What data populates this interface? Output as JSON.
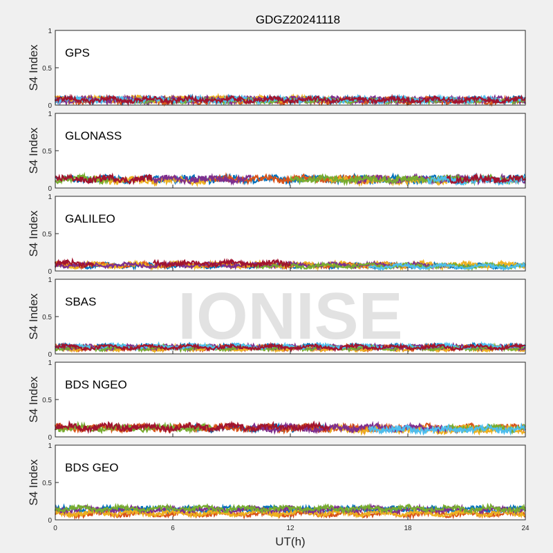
{
  "chart_data": {
    "type": "scatter",
    "title": "GDGZ20241118",
    "xlabel": "UT(h)",
    "ylabel": "S4 Index",
    "xlim": [
      0,
      24
    ],
    "ylim": [
      0,
      1
    ],
    "xticks": [
      "0",
      "6",
      "12",
      "18",
      "24"
    ],
    "yticks": [
      "0",
      "0.5",
      "1"
    ],
    "watermark": "IONISE",
    "colors": [
      "#0072BD",
      "#D95319",
      "#EDB120",
      "#7E2F8E",
      "#77AC30",
      "#4DBEEE",
      "#A2142F"
    ],
    "panels": [
      {
        "label": "GPS",
        "series": [
          {
            "mean": 0.07,
            "noise": 0.03,
            "ranges": [
              [
                0,
                24
              ]
            ]
          },
          {
            "mean": 0.06,
            "noise": 0.03,
            "ranges": [
              [
                0,
                24
              ]
            ]
          },
          {
            "mean": 0.08,
            "noise": 0.03,
            "ranges": [
              [
                0,
                14
              ]
            ]
          },
          {
            "mean": 0.07,
            "noise": 0.03,
            "ranges": [
              [
                0,
                24
              ]
            ]
          },
          {
            "mean": 0.06,
            "noise": 0.02,
            "ranges": [
              [
                4,
                24
              ]
            ]
          },
          {
            "mean": 0.07,
            "noise": 0.03,
            "ranges": [
              [
                0,
                24
              ]
            ]
          },
          {
            "mean": 0.07,
            "noise": 0.03,
            "ranges": [
              [
                0,
                24
              ]
            ]
          }
        ]
      },
      {
        "label": "GLONASS",
        "series": [
          {
            "mean": 0.12,
            "noise": 0.04,
            "ranges": [
              [
                0,
                24
              ]
            ]
          },
          {
            "mean": 0.12,
            "noise": 0.04,
            "ranges": [
              [
                8,
                17
              ]
            ]
          },
          {
            "mean": 0.1,
            "noise": 0.04,
            "ranges": [
              [
                2,
                8
              ],
              [
                14,
                20
              ]
            ]
          },
          {
            "mean": 0.12,
            "noise": 0.04,
            "ranges": [
              [
                5,
                10
              ],
              [
                15,
                24
              ]
            ]
          },
          {
            "mean": 0.12,
            "noise": 0.04,
            "ranges": [
              [
                0,
                3
              ],
              [
                12,
                24
              ]
            ]
          },
          {
            "mean": 0.1,
            "noise": 0.04,
            "ranges": [
              [
                19,
                24
              ]
            ]
          },
          {
            "mean": 0.12,
            "noise": 0.04,
            "ranges": [
              [
                0,
                5
              ],
              [
                20,
                24
              ]
            ]
          }
        ]
      },
      {
        "label": "GALILEO",
        "series": [
          {
            "mean": 0.07,
            "noise": 0.02,
            "ranges": [
              [
                0,
                24
              ]
            ]
          },
          {
            "mean": 0.08,
            "noise": 0.02,
            "ranges": [
              [
                0,
                18
              ]
            ]
          },
          {
            "mean": 0.08,
            "noise": 0.03,
            "ranges": [
              [
                0,
                24
              ]
            ]
          },
          {
            "mean": 0.08,
            "noise": 0.02,
            "ranges": [
              [
                0,
                20
              ]
            ]
          },
          {
            "mean": 0.07,
            "noise": 0.02,
            "ranges": [
              [
                10,
                24
              ]
            ]
          },
          {
            "mean": 0.06,
            "noise": 0.02,
            "ranges": [
              [
                16,
                24
              ]
            ]
          },
          {
            "mean": 0.1,
            "noise": 0.03,
            "ranges": [
              [
                0,
                2
              ],
              [
                5,
                12
              ]
            ]
          }
        ]
      },
      {
        "label": "SBAS",
        "series": [
          {
            "mean": 0.1,
            "noise": 0.02,
            "ranges": [
              [
                0,
                24
              ]
            ]
          },
          {
            "mean": 0.08,
            "noise": 0.02,
            "ranges": [
              [
                0,
                24
              ]
            ]
          },
          {
            "mean": 0.07,
            "noise": 0.02,
            "ranges": [
              [
                0,
                24
              ]
            ]
          },
          {
            "mean": 0.09,
            "noise": 0.02,
            "ranges": [
              [
                0,
                24
              ]
            ]
          },
          {
            "mean": 0.08,
            "noise": 0.02,
            "ranges": [
              [
                0,
                24
              ]
            ]
          },
          {
            "mean": 0.1,
            "noise": 0.02,
            "ranges": [
              [
                0,
                24
              ]
            ]
          },
          {
            "mean": 0.09,
            "noise": 0.02,
            "ranges": [
              [
                0,
                24
              ]
            ]
          }
        ]
      },
      {
        "label": "BDS NGEO",
        "series": [
          {
            "mean": 0.12,
            "noise": 0.04,
            "ranges": [
              [
                7,
                14
              ]
            ]
          },
          {
            "mean": 0.12,
            "noise": 0.04,
            "ranges": [
              [
                0,
                24
              ]
            ]
          },
          {
            "mean": 0.1,
            "noise": 0.04,
            "ranges": [
              [
                14,
                24
              ]
            ]
          },
          {
            "mean": 0.12,
            "noise": 0.04,
            "ranges": [
              [
                10,
                20
              ]
            ]
          },
          {
            "mean": 0.12,
            "noise": 0.04,
            "ranges": [
              [
                0,
                8
              ],
              [
                20,
                24
              ]
            ]
          },
          {
            "mean": 0.1,
            "noise": 0.04,
            "ranges": [
              [
                16,
                24
              ]
            ]
          },
          {
            "mean": 0.13,
            "noise": 0.04,
            "ranges": [
              [
                0,
                14
              ]
            ]
          }
        ]
      },
      {
        "label": "BDS GEO",
        "series": [
          {
            "mean": 0.14,
            "noise": 0.03,
            "ranges": [
              [
                0,
                24
              ]
            ]
          },
          {
            "mean": 0.08,
            "noise": 0.03,
            "ranges": [
              [
                0,
                24
              ]
            ]
          },
          {
            "mean": 0.09,
            "noise": 0.03,
            "ranges": [
              [
                0,
                24
              ]
            ]
          },
          {
            "mean": 0.14,
            "noise": 0.03,
            "ranges": [
              [
                0,
                24
              ]
            ]
          },
          {
            "mean": 0.15,
            "noise": 0.03,
            "ranges": [
              [
                0,
                24
              ]
            ]
          }
        ]
      }
    ]
  }
}
